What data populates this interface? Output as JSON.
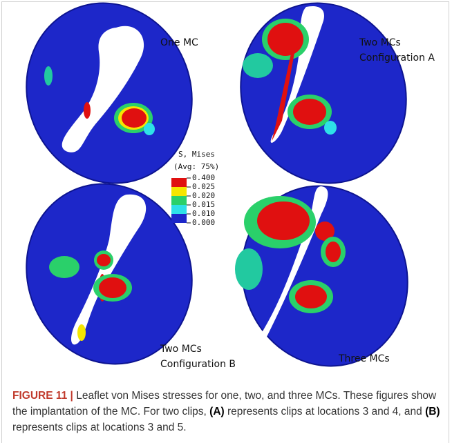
{
  "figure": {
    "panels": [
      {
        "label": "One MC"
      },
      {
        "label": "Two MCs",
        "sublabel": "Configuration A"
      },
      {
        "label": "Two MCs",
        "sublabel": "Configuration B"
      },
      {
        "label": "Three MCs"
      }
    ],
    "legend": {
      "title": "S, Mises",
      "subtitle": "(Avg: 75%)",
      "levels": [
        "0.400",
        "0.025",
        "0.020",
        "0.015",
        "0.010",
        "0.000"
      ]
    }
  },
  "caption": {
    "label": "FIGURE 11 |",
    "segments": [
      "Leaflet von Mises stresses for one, two, and three MCs. These figures show the implantation of the MC. For two clips,",
      "(A)",
      "represents clips at locations 3 and 4, and",
      "(B)",
      "represents clips at locations 3 and 5."
    ]
  }
}
